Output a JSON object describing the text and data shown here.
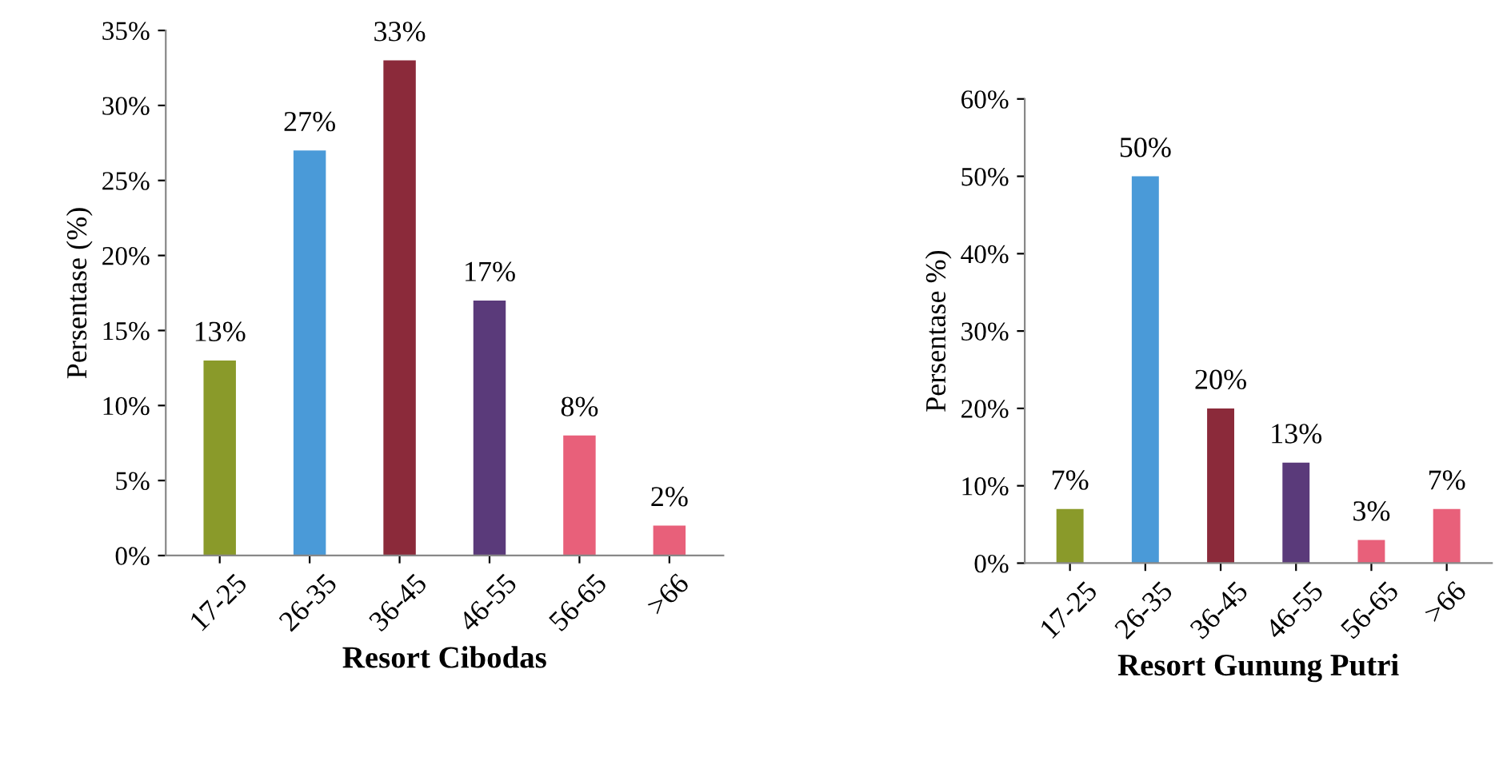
{
  "chart_data": [
    {
      "type": "bar",
      "xlabel": "Resort Cibodas",
      "ylabel": "Persentase (%)",
      "categories": [
        "17-25",
        "26-35",
        "36-45",
        "46-55",
        "56-65",
        ">66"
      ],
      "values": [
        13,
        27,
        33,
        17,
        8,
        2
      ],
      "value_labels": [
        "13%",
        "27%",
        "33%",
        "17%",
        "8%",
        "2%"
      ],
      "colors": [
        "#8a9a2a",
        "#4a9ad8",
        "#8b2a3a",
        "#5a3a7a",
        "#e8607a",
        "#e8607a"
      ],
      "ylim": [
        0,
        35
      ],
      "yticks": [
        {
          "value": 0,
          "label": "0%"
        },
        {
          "value": 5,
          "label": "5%"
        },
        {
          "value": 10,
          "label": "10%"
        },
        {
          "value": 15,
          "label": "15%"
        },
        {
          "value": 20,
          "label": "20%"
        },
        {
          "value": 25,
          "label": "25%"
        },
        {
          "value": 30,
          "label": "30%"
        },
        {
          "value": 35,
          "label": "35%"
        }
      ]
    },
    {
      "type": "bar",
      "xlabel": "Resort Gunung Putri",
      "ylabel": "Persentase %)",
      "categories": [
        "17-25",
        "26-35",
        "36-45",
        "46-55",
        "56-65",
        ">66"
      ],
      "values": [
        7,
        50,
        20,
        13,
        3,
        7
      ],
      "value_labels": [
        "7%",
        "50%",
        "20%",
        "13%",
        "3%",
        "7%"
      ],
      "colors": [
        "#8a9a2a",
        "#4a9ad8",
        "#8b2a3a",
        "#5a3a7a",
        "#e8607a",
        "#e8607a"
      ],
      "ylim": [
        0,
        60
      ],
      "yticks": [
        {
          "value": 0,
          "label": "0%"
        },
        {
          "value": 10,
          "label": "10%"
        },
        {
          "value": 20,
          "label": "20%"
        },
        {
          "value": 30,
          "label": "30%"
        },
        {
          "value": 40,
          "label": "40%"
        },
        {
          "value": 50,
          "label": "50%"
        },
        {
          "value": 60,
          "label": "60%"
        }
      ]
    }
  ]
}
